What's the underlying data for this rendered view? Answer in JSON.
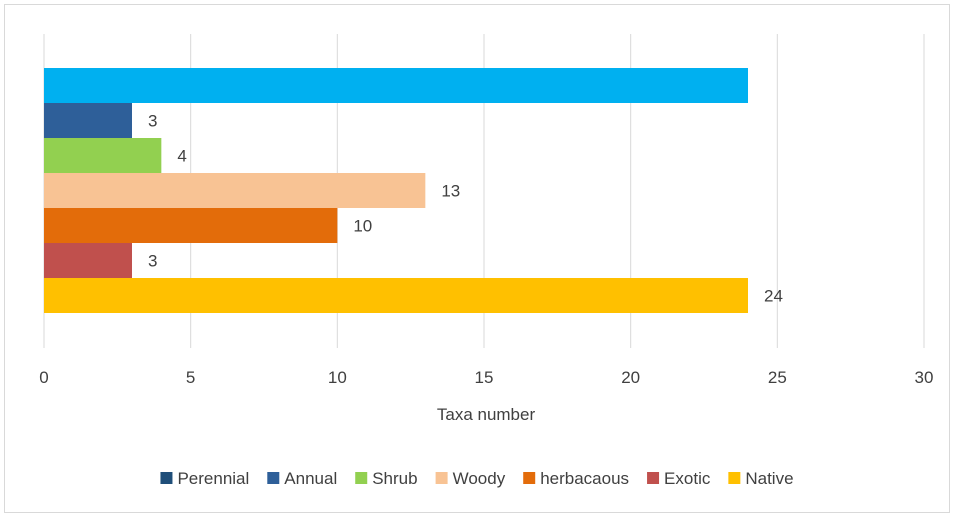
{
  "chart_data": {
    "type": "bar",
    "orientation": "horizontal",
    "title": "",
    "xlabel": "Taxa number",
    "ylabel": "",
    "xlim": [
      0,
      30
    ],
    "x_ticks": [
      0,
      5,
      10,
      15,
      20,
      25,
      30
    ],
    "grid": true,
    "legend_position": "bottom",
    "series": [
      {
        "name": "Perennial",
        "value": 24,
        "color": "#00b0f0",
        "show_label": false
      },
      {
        "name": "Annual",
        "value": 3,
        "color": "#2e5f99",
        "show_label": true
      },
      {
        "name": "Shrub",
        "value": 4,
        "color": "#92d050",
        "show_label": true
      },
      {
        "name": "Woody",
        "value": 13,
        "color": "#f8c394",
        "show_label": true
      },
      {
        "name": "herbacaous",
        "value": 10,
        "color": "#e36c0a",
        "show_label": true
      },
      {
        "name": "Exotic",
        "value": 3,
        "color": "#c0504d",
        "show_label": true
      },
      {
        "name": "Native",
        "value": 24,
        "color": "#ffc000",
        "show_label": true
      }
    ],
    "legend": [
      {
        "name": "Perennial",
        "color": "#1f4e79"
      },
      {
        "name": "Annual",
        "color": "#2e5f99"
      },
      {
        "name": "Shrub",
        "color": "#92d050"
      },
      {
        "name": "Woody",
        "color": "#f8c394"
      },
      {
        "name": "herbacaous",
        "color": "#e36c0a"
      },
      {
        "name": "Exotic",
        "color": "#c0504d"
      },
      {
        "name": "Native",
        "color": "#ffc000"
      }
    ],
    "gridline_color": "#d9d9d9",
    "text_color": "#404040"
  }
}
